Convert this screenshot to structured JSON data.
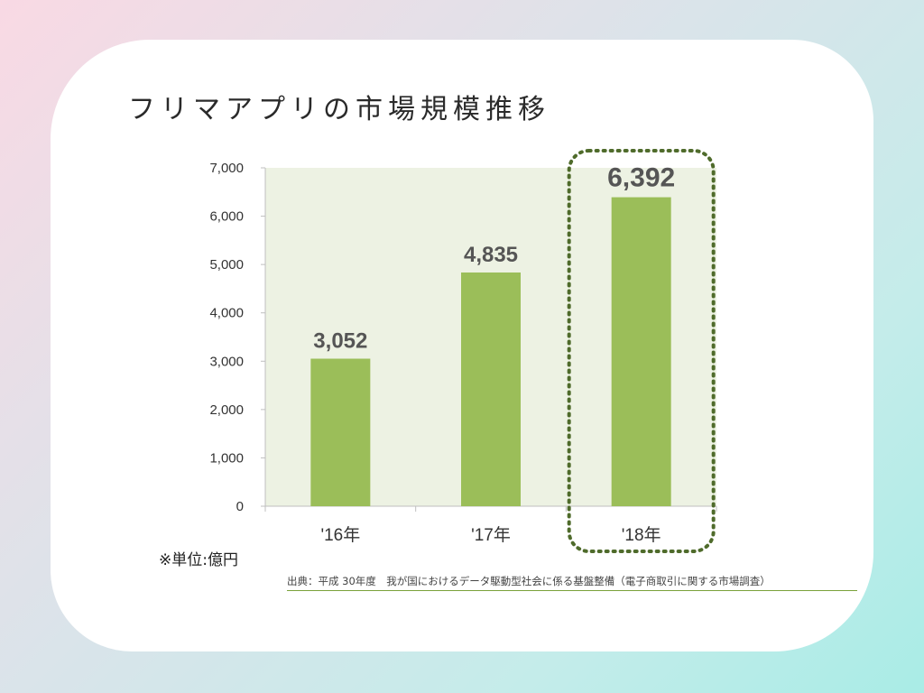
{
  "title": "フリマアプリの市場規模推移",
  "unit_note": "※単位:億円",
  "source": "出典：平成 30年度　我が国におけるデータ駆動型社会に係る基盤整備（電子商取引に関する市場調査）",
  "colors": {
    "bar": "#9bbe59",
    "plot_bg": "#edf2e3",
    "highlight_border": "#4f6b2b"
  },
  "chart_data": {
    "type": "bar",
    "categories": [
      "'16年",
      "'17年",
      "'18年"
    ],
    "values": [
      3052,
      4835,
      6392
    ],
    "data_labels": [
      "3,052",
      "4,835",
      "6,392"
    ],
    "y_ticks": [
      "0",
      "1,000",
      "2,000",
      "3,000",
      "4,000",
      "5,000",
      "6,000",
      "7,000"
    ],
    "ylim": [
      0,
      7000
    ],
    "grid": false,
    "highlight_category": "'18年"
  }
}
